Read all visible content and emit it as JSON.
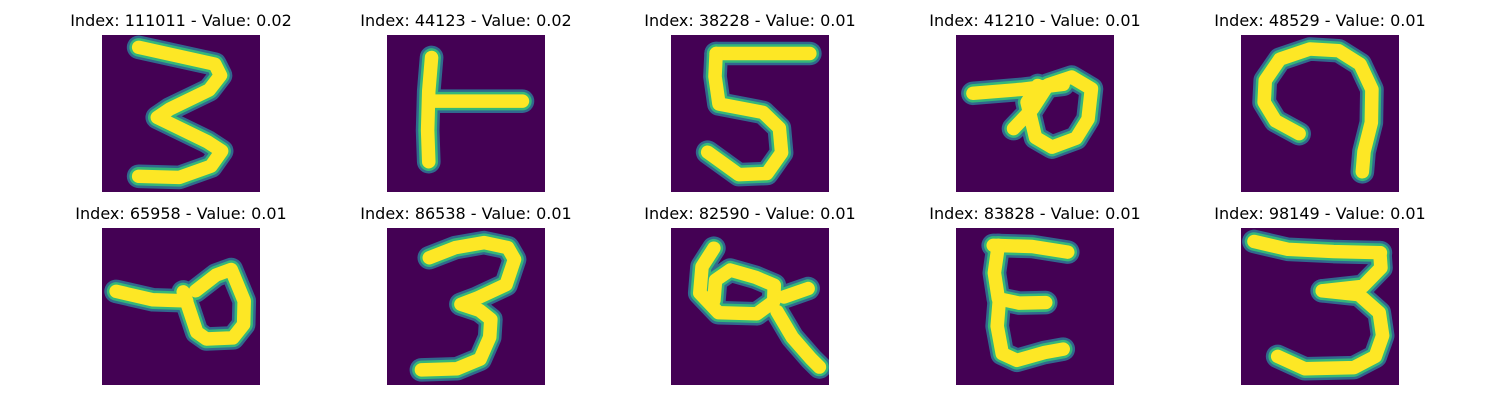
{
  "figure": {
    "background": "#ffffff",
    "colormap": {
      "background": "#440154",
      "low": "#31688e",
      "mid": "#35b779",
      "high": "#fde725"
    },
    "panels": [
      {
        "title": "Index: 111011 - Value: 0.02",
        "glyph": "3"
      },
      {
        "title": "Index: 44123 - Value: 0.02",
        "glyph": "T-rotated"
      },
      {
        "title": "Index: 38228 - Value: 0.01",
        "glyph": "5"
      },
      {
        "title": "Index: 41210 - Value: 0.01",
        "glyph": "loop-with-tail"
      },
      {
        "title": "Index: 48529 - Value: 0.01",
        "glyph": "hook"
      },
      {
        "title": "Index: 65958 - Value: 0.01",
        "glyph": "loop-with-left-tail"
      },
      {
        "title": "Index: 86538 - Value: 0.01",
        "glyph": "3"
      },
      {
        "title": "Index: 82590 - Value: 0.01",
        "glyph": "loop-with-right-tail"
      },
      {
        "title": "Index: 83828 - Value: 0.01",
        "glyph": "E-like"
      },
      {
        "title": "Index: 98149 - Value: 0.01",
        "glyph": "3"
      }
    ]
  }
}
